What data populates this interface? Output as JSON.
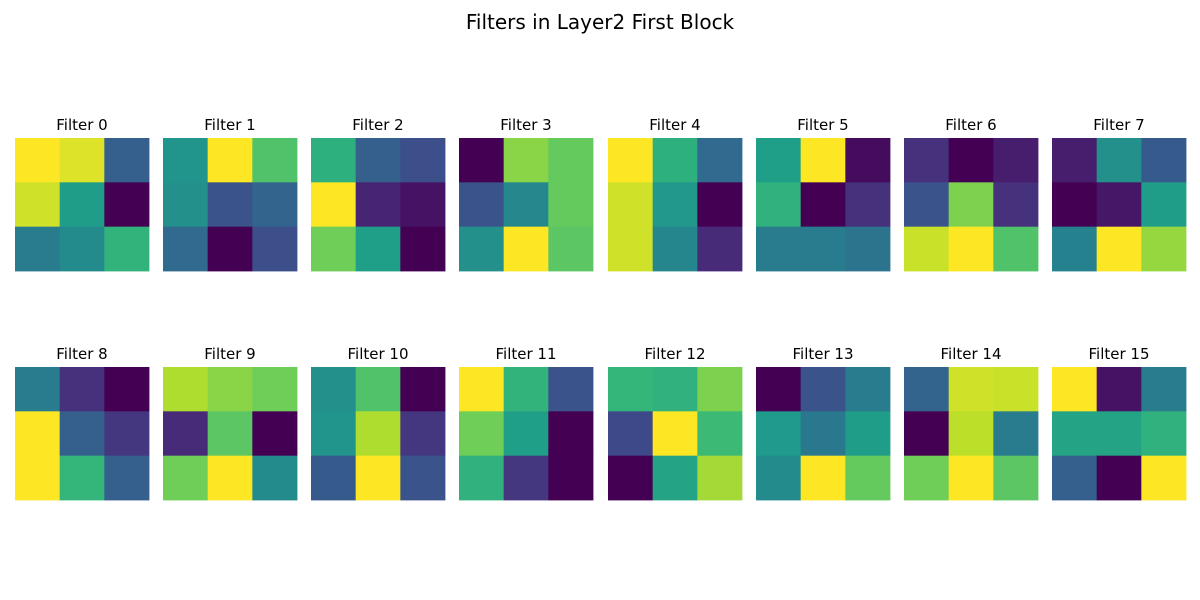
{
  "chart_data": {
    "type": "heatmap",
    "title": "Filters in Layer2 First Block",
    "colormap": "viridis",
    "value_range": [
      0,
      1
    ],
    "grid": false,
    "axes": "off",
    "layout": {
      "rows": 2,
      "columns": 8
    },
    "filters": [
      {
        "label": "Filter 0",
        "values": [
          [
            1.0,
            0.95,
            0.3
          ],
          [
            0.93,
            0.55,
            0.0
          ],
          [
            0.42,
            0.48,
            0.65
          ]
        ]
      },
      {
        "label": "Filter 1",
        "values": [
          [
            0.52,
            1.0,
            0.72
          ],
          [
            0.5,
            0.26,
            0.32
          ],
          [
            0.34,
            0.0,
            0.24
          ]
        ]
      },
      {
        "label": "Filter 2",
        "values": [
          [
            0.63,
            0.3,
            0.24
          ],
          [
            1.0,
            0.1,
            0.05
          ],
          [
            0.78,
            0.56,
            0.0
          ]
        ]
      },
      {
        "label": "Filter 3",
        "values": [
          [
            0.0,
            0.82,
            0.76
          ],
          [
            0.26,
            0.47,
            0.76
          ],
          [
            0.5,
            1.0,
            0.74
          ]
        ]
      },
      {
        "label": "Filter 4",
        "values": [
          [
            1.0,
            0.63,
            0.34
          ],
          [
            0.93,
            0.53,
            0.0
          ],
          [
            0.93,
            0.46,
            0.12
          ]
        ]
      },
      {
        "label": "Filter 5",
        "values": [
          [
            0.56,
            1.0,
            0.03
          ],
          [
            0.64,
            0.0,
            0.14
          ],
          [
            0.42,
            0.42,
            0.38
          ]
        ]
      },
      {
        "label": "Filter 6",
        "values": [
          [
            0.14,
            0.0,
            0.08
          ],
          [
            0.26,
            0.8,
            0.14
          ],
          [
            0.92,
            1.0,
            0.72
          ]
        ]
      },
      {
        "label": "Filter 7",
        "values": [
          [
            0.08,
            0.5,
            0.28
          ],
          [
            0.0,
            0.06,
            0.55
          ],
          [
            0.44,
            1.0,
            0.84
          ]
        ]
      },
      {
        "label": "Filter 8",
        "values": [
          [
            0.42,
            0.14,
            0.0
          ],
          [
            1.0,
            0.3,
            0.16
          ],
          [
            1.0,
            0.66,
            0.3
          ]
        ]
      },
      {
        "label": "Filter 9",
        "values": [
          [
            0.88,
            0.82,
            0.78
          ],
          [
            0.12,
            0.74,
            0.0
          ],
          [
            0.78,
            1.0,
            0.48
          ]
        ]
      },
      {
        "label": "Filter 10",
        "values": [
          [
            0.5,
            0.72,
            0.0
          ],
          [
            0.52,
            0.88,
            0.16
          ],
          [
            0.28,
            1.0,
            0.26
          ]
        ]
      },
      {
        "label": "Filter 11",
        "values": [
          [
            1.0,
            0.65,
            0.26
          ],
          [
            0.78,
            0.56,
            0.0
          ],
          [
            0.64,
            0.16,
            0.0
          ]
        ]
      },
      {
        "label": "Filter 12",
        "values": [
          [
            0.66,
            0.64,
            0.8
          ],
          [
            0.22,
            1.0,
            0.68
          ],
          [
            0.0,
            0.58,
            0.86
          ]
        ]
      },
      {
        "label": "Filter 13",
        "values": [
          [
            0.0,
            0.26,
            0.42
          ],
          [
            0.54,
            0.4,
            0.55
          ],
          [
            0.48,
            1.0,
            0.76
          ]
        ]
      },
      {
        "label": "Filter 14",
        "values": [
          [
            0.32,
            0.93,
            0.92
          ],
          [
            0.0,
            0.9,
            0.42
          ],
          [
            0.78,
            1.0,
            0.74
          ]
        ]
      },
      {
        "label": "Filter 15",
        "values": [
          [
            1.0,
            0.05,
            0.42
          ],
          [
            0.58,
            0.58,
            0.64
          ],
          [
            0.3,
            0.0,
            1.0
          ]
        ]
      }
    ]
  }
}
